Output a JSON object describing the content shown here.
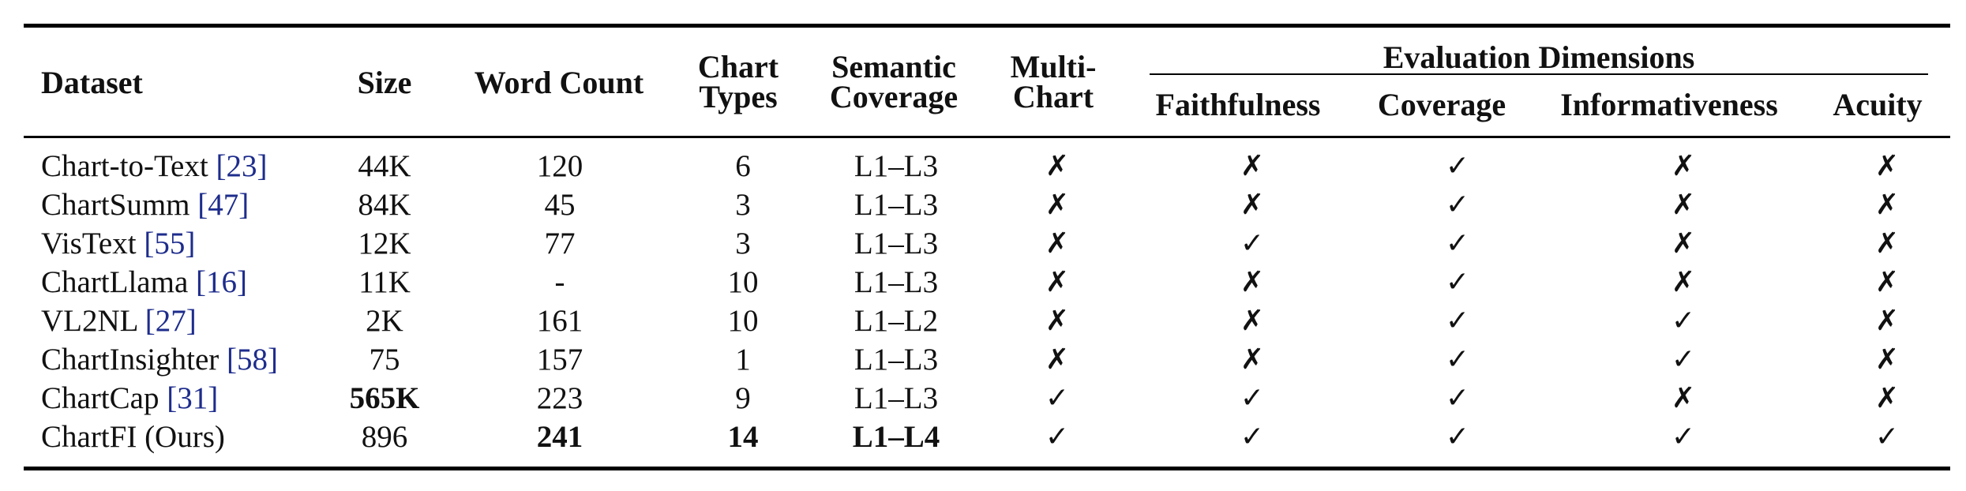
{
  "header": {
    "dataset": "Dataset",
    "size": "Size",
    "word_count": "Word Count",
    "chart_types": [
      "Chart",
      "Types"
    ],
    "semantic_coverage": [
      "Semantic",
      "Coverage"
    ],
    "multi_chart": [
      "Multi-",
      "Chart"
    ],
    "eval_group": "Evaluation Dimensions",
    "faithfulness": "Faithfulness",
    "coverage": "Coverage",
    "informativeness": "Informativeness",
    "acuity": "Acuity"
  },
  "marks": {
    "yes": "✓",
    "no": "✗"
  },
  "rows": [
    {
      "name": "Chart-to-Text ",
      "ref": "[23]",
      "size": "44K",
      "words": "120",
      "types": "6",
      "semantic": "L1–L3",
      "multi": "no",
      "faith": "no",
      "cov": "yes",
      "info": "no",
      "acuity": "no"
    },
    {
      "name": "ChartSumm ",
      "ref": "[47]",
      "size": "84K",
      "words": "45",
      "types": "3",
      "semantic": "L1–L3",
      "multi": "no",
      "faith": "no",
      "cov": "yes",
      "info": "no",
      "acuity": "no"
    },
    {
      "name": "VisText ",
      "ref": "[55]",
      "size": "12K",
      "words": "77",
      "types": "3",
      "semantic": "L1–L3",
      "multi": "no",
      "faith": "yes",
      "cov": "yes",
      "info": "no",
      "acuity": "no"
    },
    {
      "name": "ChartLlama ",
      "ref": "[16]",
      "size": "11K",
      "words": "-",
      "types": "10",
      "semantic": "L1–L3",
      "multi": "no",
      "faith": "no",
      "cov": "yes",
      "info": "no",
      "acuity": "no"
    },
    {
      "name": "VL2NL ",
      "ref": "[27]",
      "size": "2K",
      "words": "161",
      "types": "10",
      "semantic": "L1–L2",
      "multi": "no",
      "faith": "no",
      "cov": "yes",
      "info": "yes",
      "acuity": "no"
    },
    {
      "name": "ChartInsighter ",
      "ref": "[58]",
      "size": "75",
      "words": "157",
      "types": "1",
      "semantic": "L1–L3",
      "multi": "no",
      "faith": "no",
      "cov": "yes",
      "info": "yes",
      "acuity": "no"
    },
    {
      "name": "ChartCap ",
      "ref": "[31]",
      "size": "565K",
      "words": "223",
      "types": "9",
      "semantic": "L1–L3",
      "multi": "yes",
      "faith": "yes",
      "cov": "yes",
      "info": "no",
      "acuity": "no",
      "bold": [
        "size"
      ]
    },
    {
      "name": "ChartFI (Ours)",
      "ref": "",
      "size": "896",
      "words": "241",
      "types": "14",
      "semantic": "L1–L4",
      "multi": "yes",
      "faith": "yes",
      "cov": "yes",
      "info": "yes",
      "acuity": "yes",
      "bold": [
        "words",
        "types",
        "semantic"
      ]
    }
  ]
}
